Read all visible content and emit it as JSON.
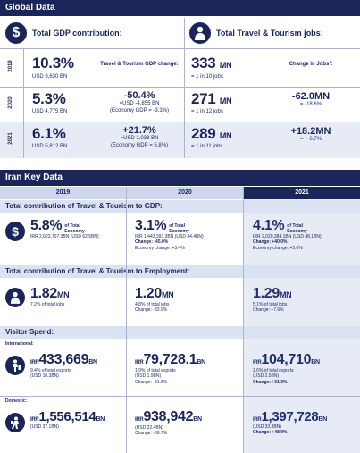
{
  "global": {
    "title": "Global Data",
    "gdp_header": "Total GDP contribution:",
    "jobs_header": "Total Travel & Tourism jobs:",
    "change_gdp_label": "Travel & Tourism GDP change:",
    "change_jobs_label": "Change in Jobs²:",
    "rows": [
      {
        "year": "2019",
        "gdp_pct": "10.3%",
        "gdp_usd": "USD 9,630 BN",
        "jobs": "333",
        "jobs_unit": "MN",
        "jobs_ratio": "= 1 in 10 jobs"
      },
      {
        "year": "2020",
        "gdp_pct": "5.3%",
        "gdp_usd": "USD 4,775 BN",
        "gdp_change": "-50.4%",
        "gdp_change_usd": "=USD -4,855 BN",
        "gdp_change_econ": "(Economy GDP = -3.3%)",
        "jobs": "271",
        "jobs_unit": "MN",
        "jobs_ratio": "= 1 in 12 jobs",
        "jobs_change": "-62.0MN",
        "jobs_change_pct": "= -18.6%"
      },
      {
        "year": "2021",
        "gdp_pct": "6.1%",
        "gdp_usd": "USD 5,812 BN",
        "gdp_change": "+21.7%",
        "gdp_change_usd": "=USD 1,038 BN",
        "gdp_change_econ": "(Economy GDP = 5.8%)",
        "jobs": "289",
        "jobs_unit": "MN",
        "jobs_ratio": "= 1 in 11 jobs",
        "jobs_change": "+18.2MN",
        "jobs_change_pct": "= + 6.7%"
      }
    ]
  },
  "iran": {
    "title": "Iran Key Data",
    "years": [
      "2019",
      "2020",
      "2021"
    ],
    "gdp_section": "Total contribution of Travel & Tourism to GDP:",
    "gdp": [
      {
        "pct": "5.8%",
        "of_total": "of Total Economy",
        "line2": "IRR 2,623,707.3BN (USD 62.5BN)"
      },
      {
        "pct": "3.1%",
        "of_total": "of Total Economy",
        "line2": "IRR 1,443,393.3BN (USD 34.4BN)",
        "change": "Change: -45.0%",
        "econ": "Economy change: +3.4%"
      },
      {
        "pct": "4.1%",
        "of_total": "of Total Economy",
        "line2": "IRR 2,020,384.1BN (USD 48.1BN)",
        "change": "Change: +40.0%",
        "econ": "Economy change: +5.0%"
      }
    ],
    "emp_section": "Total contribution of Travel & Tourism to Employment:",
    "emp": [
      {
        "val": "1.82",
        "unit": "MN",
        "sub": "7.2% of total jobs"
      },
      {
        "val": "1.20",
        "unit": "MN",
        "sub": "4.8% of total jobs",
        "change": "Change: -33.9%"
      },
      {
        "val": "1.29",
        "unit": "MN",
        "sub": "5.1% of total jobs",
        "change": "Change: +7.6%"
      }
    ],
    "visitor_section": "Visitor Spend:",
    "intl_label": "International:",
    "intl": [
      {
        "pre": "IRR",
        "val": "433,669",
        "unit": "BN",
        "sub": "9.4% of total exports",
        "sub2": "(USD 10.3BN)"
      },
      {
        "pre": "IRR",
        "val": "79,728.1",
        "unit": "BN",
        "sub": "1.9% of total exports",
        "sub2": "(USD 1.9BN)",
        "change": "Change: -81.6%"
      },
      {
        "pre": "IRR",
        "val": "104,710",
        "unit": "BN",
        "sub": "2.6% of total exports",
        "sub2": "(USD 2.5BN)",
        "change": "Change: +31.3%"
      }
    ],
    "dom_label": "Domestic:",
    "dom": [
      {
        "pre": "IRR",
        "val": "1,556,514",
        "unit": "BN",
        "sub": "(USD 37.1BN)"
      },
      {
        "pre": "IRR",
        "val": "938,942",
        "unit": "BN",
        "sub": "(USD 22.4BN)",
        "change": "Change: -39.7%"
      },
      {
        "pre": "IRR",
        "val": "1,397,728",
        "unit": "BN",
        "sub": "(USD 33.3BN)",
        "change": "Change: +48.9%"
      }
    ]
  }
}
